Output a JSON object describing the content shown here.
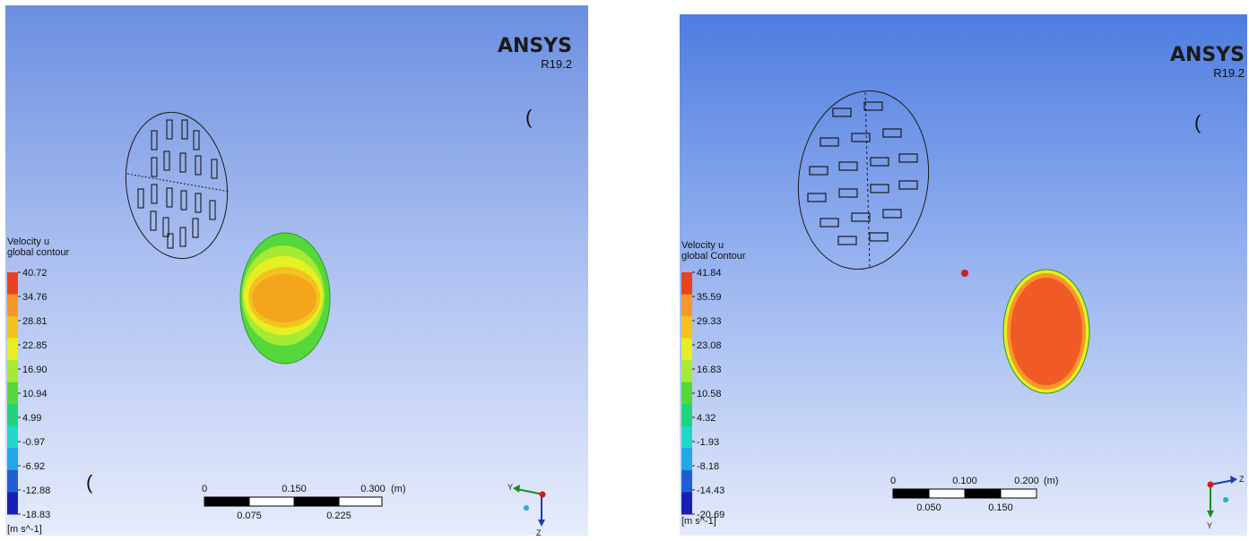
{
  "left_panel": {
    "brand": {
      "name": "ANSYS",
      "version": "R19.2"
    },
    "stray_marks": [
      "(",
      "("
    ],
    "legend": {
      "title_line1": "Velocity u",
      "title_line2": "global contour",
      "unit": "[m s^-1]",
      "ticks": [
        "40.72",
        "34.76",
        "28.81",
        "22.85",
        "16.90",
        "10.94",
        "4.99",
        "-0.97",
        "-6.92",
        "-12.88",
        "-18.83"
      ],
      "colors": [
        "#e8421f",
        "#f7962a",
        "#f2c31e",
        "#e6ef22",
        "#a6ea34",
        "#55d83a",
        "#22d37a",
        "#21d7c9",
        "#22a7e8",
        "#1f5fd6",
        "#1a1fb4"
      ]
    },
    "scale_bar": {
      "top_labels": [
        "0",
        "0.150",
        "0.300"
      ],
      "unit": "(m)",
      "bottom_labels": [
        "0.075",
        "0.225"
      ]
    },
    "triad": {
      "axis_a": "Y",
      "axis_b": "Z"
    }
  },
  "right_panel": {
    "brand": {
      "name": "ANSYS",
      "version": "R19.2"
    },
    "stray_marks": [
      "("
    ],
    "legend": {
      "title_line1": "Velocity u",
      "title_line2": "global Contour",
      "unit": "[m s^-1]",
      "ticks": [
        "41.84",
        "35.59",
        "29.33",
        "23.08",
        "16.83",
        "10.58",
        "4.32",
        "-1.93",
        "-8.18",
        "-14.43",
        "-20.69"
      ],
      "colors": [
        "#e8421f",
        "#f7962a",
        "#f2c31e",
        "#e6ef22",
        "#a6ea34",
        "#55d83a",
        "#22d37a",
        "#21d7c9",
        "#22a7e8",
        "#1f5fd6",
        "#1a1fb4"
      ]
    },
    "scale_bar": {
      "top_labels": [
        "0",
        "0.100",
        "0.200"
      ],
      "unit": "(m)",
      "bottom_labels": [
        "0.050",
        "0.150"
      ]
    },
    "triad": {
      "axis_a": "Z",
      "axis_b": "Y"
    }
  }
}
